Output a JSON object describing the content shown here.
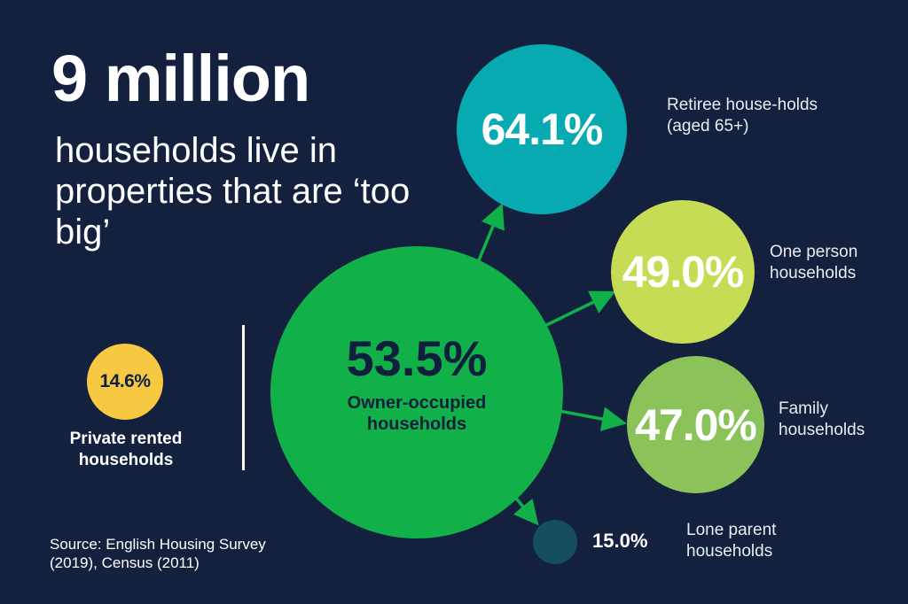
{
  "headline": "9 million",
  "subhead": "households live in properties that are ‘too big’",
  "main": {
    "value": "53.5%",
    "label": "Owner-occupied households"
  },
  "private": {
    "value": "14.6%",
    "label": "Private rented households"
  },
  "breakdown": {
    "retiree": {
      "value": "64.1%",
      "label": "Retiree house-holds (aged 65+)"
    },
    "one_person": {
      "value": "49.0%",
      "label": "One person households"
    },
    "family": {
      "value": "47.0%",
      "label": "Family households"
    },
    "lone_parent": {
      "value": "15.0%",
      "label": "Lone parent households"
    }
  },
  "source": "Source: English Housing Survey (2019), Census (2011)",
  "colors": {
    "background": "#13213f",
    "owner": "#11b049",
    "retiree": "#07aab1",
    "one_person": "#c7dc55",
    "family": "#8bc35a",
    "lone_parent": "#154f5f",
    "private": "#f7c942"
  }
}
